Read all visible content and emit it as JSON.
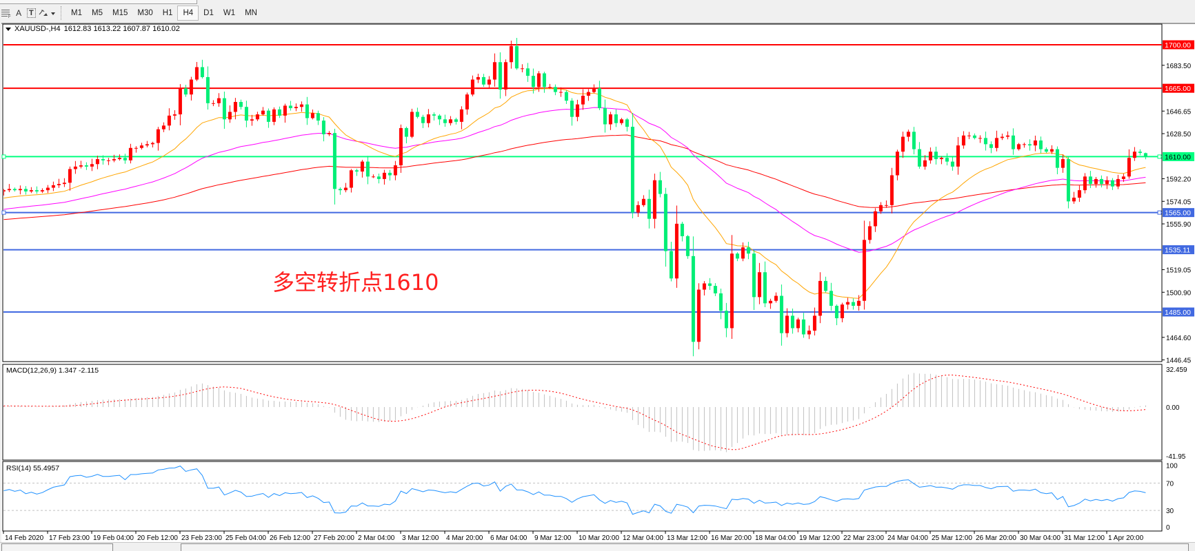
{
  "toolbar": {
    "tools": [
      {
        "icon": "fibonacci-grid-icon"
      },
      {
        "icon": "text-icon",
        "glyph": "A"
      },
      {
        "icon": "text-label-icon",
        "glyph": "T"
      },
      {
        "icon": "arrows-icon"
      }
    ],
    "timeframes": [
      "M1",
      "M5",
      "M15",
      "M30",
      "H1",
      "H4",
      "D1",
      "W1",
      "MN"
    ],
    "active_timeframe": "H4"
  },
  "chart": {
    "symbol_label": "XAUUSD-,H4",
    "ohlc_label": "1612.83 1613.22 1607.87 1610.02",
    "annotation": "多空转折点1610",
    "price_axis": [
      "1683.50",
      "1646.65",
      "1628.50",
      "1592.20",
      "1574.05",
      "1555.90",
      "1519.05",
      "1500.90",
      "1464.60",
      "1446.45"
    ],
    "hlines": [
      {
        "price": 1700.0,
        "label": "1700.00",
        "color": "#ff0000"
      },
      {
        "price": 1665.0,
        "label": "1665.00",
        "color": "#ff0000"
      },
      {
        "price": 1610.0,
        "label": "1610.00",
        "color": "#00ff7f"
      },
      {
        "price": 1565.0,
        "label": "1565.00",
        "color": "#4169e1"
      },
      {
        "price": 1535.11,
        "label": "1535.11",
        "color": "#4169e1"
      },
      {
        "price": 1485.0,
        "label": "1485.00",
        "color": "#4169e1"
      }
    ],
    "time_axis": [
      "14 Feb 2020",
      "17 Feb 23:00",
      "19 Feb 04:00",
      "20 Feb 12:00",
      "23 Feb 23:00",
      "25 Feb 04:00",
      "26 Feb 12:00",
      "27 Feb 20:00",
      "2 Mar 04:00",
      "3 Mar 12:00",
      "4 Mar 20:00",
      "6 Mar 04:00",
      "9 Mar 12:00",
      "10 Mar 20:00",
      "12 Mar 04:00",
      "13 Mar 12:00",
      "16 Mar 20:00",
      "18 Mar 04:00",
      "19 Mar 12:00",
      "22 Mar 23:00",
      "24 Mar 04:00",
      "25 Mar 12:00",
      "26 Mar 20:00",
      "30 Mar 04:00",
      "31 Mar 12:00",
      "1 Apr 20:00"
    ]
  },
  "chart_data": {
    "type": "candlestick",
    "symbol": "XAUUSD-",
    "timeframe": "H4",
    "ylim": [
      1446.45,
      1700.0
    ],
    "colors": {
      "up": "#ff0000",
      "down": "#00ee76",
      "ma_fast": "#ffa500",
      "ma_mid": "#ff00ff",
      "ma_slow": "#ff0000"
    },
    "last_candle": {
      "open": 1612.83,
      "high": 1613.22,
      "low": 1607.87,
      "close": 1610.02
    },
    "closes": [
      1583,
      1584,
      1583,
      1584,
      1582,
      1583,
      1582,
      1583,
      1585,
      1587,
      1588,
      1589,
      1600,
      1602,
      1603,
      1602,
      1604,
      1608,
      1607,
      1607,
      1608,
      1609,
      1607,
      1617,
      1617,
      1619,
      1620,
      1621,
      1632,
      1635,
      1643,
      1644,
      1665,
      1660,
      1672,
      1682,
      1674,
      1653,
      1653,
      1657,
      1640,
      1646,
      1654,
      1650,
      1639,
      1640,
      1644,
      1647,
      1638,
      1648,
      1643,
      1651,
      1649,
      1650,
      1652,
      1641,
      1645,
      1639,
      1628,
      1629,
      1584,
      1583,
      1585,
      1599,
      1598,
      1606,
      1594,
      1594,
      1592,
      1597,
      1595,
      1603,
      1633,
      1626,
      1646,
      1642,
      1637,
      1644,
      1643,
      1640,
      1637,
      1640,
      1638,
      1648,
      1660,
      1672,
      1674,
      1668,
      1672,
      1686,
      1664,
      1686,
      1699,
      1681,
      1681,
      1675,
      1666,
      1677,
      1666,
      1666,
      1662,
      1662,
      1655,
      1642,
      1652,
      1659,
      1662,
      1665,
      1649,
      1636,
      1644,
      1637,
      1640,
      1634,
      1565,
      1571,
      1576,
      1560,
      1591,
      1580,
      1534,
      1512,
      1556,
      1546,
      1530,
      1461,
      1503,
      1508,
      1506,
      1500,
      1486,
      1472,
      1532,
      1528,
      1537,
      1532,
      1497,
      1517,
      1492,
      1494,
      1498,
      1468,
      1482,
      1472,
      1479,
      1467,
      1470,
      1482,
      1510,
      1502,
      1490,
      1480,
      1491,
      1493,
      1490,
      1494,
      1543,
      1554,
      1566,
      1571,
      1571,
      1595,
      1614,
      1626,
      1630,
      1616,
      1602,
      1607,
      1614,
      1608,
      1609,
      1606,
      1602,
      1619,
      1627,
      1627,
      1625,
      1625,
      1620,
      1617,
      1625,
      1626,
      1627,
      1616,
      1620,
      1620,
      1619,
      1623,
      1616,
      1614,
      1616,
      1601,
      1608,
      1574,
      1577,
      1583,
      1594,
      1588,
      1592,
      1588,
      1591,
      1586,
      1592,
      1594,
      1609,
      1614,
      1613,
      1610.02
    ]
  },
  "macd": {
    "label": "MACD(12,26,9) 1.347 -2.115",
    "axis": [
      "32.459",
      "0.00",
      "-41.95"
    ],
    "ylim": [
      -41.95,
      32.459
    ],
    "colors": {
      "histogram": "#c0c0c0",
      "signal": "#ff0000"
    }
  },
  "rsi": {
    "label": "RSI(14) 55.4957",
    "axis": [
      "100",
      "70",
      "30",
      "0"
    ],
    "levels": [
      70,
      30
    ],
    "color": "#1e90ff"
  }
}
